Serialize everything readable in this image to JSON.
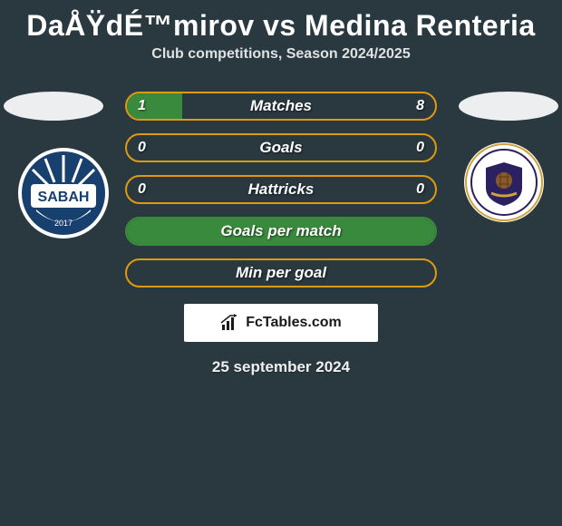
{
  "header": {
    "title": "DaÅŸdÉ™mirov vs Medina Renteria",
    "subtitle": "Club competitions, Season 2024/2025"
  },
  "palette": {
    "background": "#2a3940",
    "ellipse": "#eceeef",
    "orange_border": "#e09a10",
    "green_fill": "#3a8a3d",
    "green_border": "#3a8a3d",
    "text_white": "#ffffff"
  },
  "bars": [
    {
      "label": "Matches",
      "left_value": "1",
      "right_value": "8",
      "left_pct": 18,
      "fill_color": "#3a8a3d",
      "border_color": "#e09a10",
      "has_values": true
    },
    {
      "label": "Goals",
      "left_value": "0",
      "right_value": "0",
      "left_pct": 0,
      "fill_color": "#3a8a3d",
      "border_color": "#e09a10",
      "has_values": true
    },
    {
      "label": "Hattricks",
      "left_value": "0",
      "right_value": "0",
      "left_pct": 0,
      "fill_color": "#3a8a3d",
      "border_color": "#e09a10",
      "has_values": true
    },
    {
      "label": "Goals per match",
      "left_value": "",
      "right_value": "",
      "left_pct": 100,
      "fill_color": "#3a8a3d",
      "border_color": "#3a8a3d",
      "has_values": false
    },
    {
      "label": "Min per goal",
      "left_value": "",
      "right_value": "",
      "left_pct": 0,
      "fill_color": "#3a8a3d",
      "border_color": "#e09a10",
      "has_values": false
    }
  ],
  "teams": {
    "left": {
      "name": "Sabah",
      "badge_primary": "#17406f",
      "badge_secondary": "#ffffff",
      "badge_text": "SABAH"
    },
    "right": {
      "name": "Qarabag",
      "badge_primary": "#ffffff",
      "badge_secondary": "#2b2060",
      "badge_accent": "#d1a23a"
    }
  },
  "footer": {
    "brand": "FcTables.com",
    "date": "25 september 2024"
  }
}
